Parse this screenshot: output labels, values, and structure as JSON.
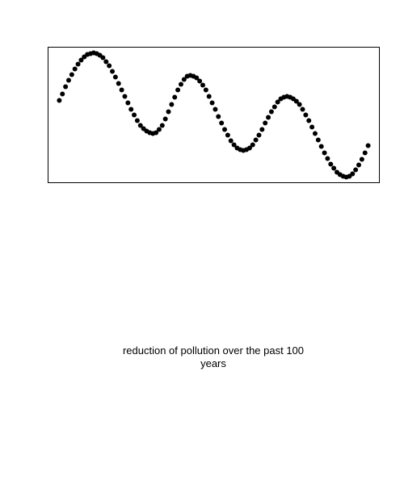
{
  "chart_data": {
    "type": "scatter",
    "title": "reduction of pollution over the past 100 years",
    "x": [
      0,
      1,
      2,
      3,
      4,
      5,
      6,
      7,
      8,
      9,
      10,
      11,
      12,
      13,
      14,
      15,
      16,
      17,
      18,
      19,
      20,
      21,
      22,
      23,
      24,
      25,
      26,
      27,
      28,
      29,
      30,
      31,
      32,
      33,
      34,
      35,
      36,
      37,
      38,
      39,
      40,
      41,
      42,
      43,
      44,
      45,
      46,
      47,
      48,
      49,
      50,
      51,
      52,
      53,
      54,
      55,
      56,
      57,
      58,
      59,
      60,
      61,
      62,
      63,
      64,
      65,
      66,
      67,
      68,
      69,
      70,
      71,
      72,
      73,
      74,
      75,
      76,
      77,
      78,
      79,
      80,
      81,
      82,
      83,
      84,
      85,
      86,
      87,
      88,
      89,
      90,
      91,
      92,
      93,
      94,
      95,
      96,
      97,
      98,
      99
    ],
    "values": [
      102,
      110,
      119,
      127,
      134,
      141,
      147,
      152,
      156,
      159,
      160,
      161,
      160,
      158,
      155,
      150,
      145,
      138,
      131,
      123,
      115,
      107,
      99,
      91,
      84,
      77,
      71,
      67,
      64,
      62,
      61,
      62,
      66,
      71,
      79,
      88,
      97,
      106,
      115,
      122,
      128,
      132,
      133,
      132,
      130,
      126,
      121,
      115,
      107,
      99,
      91,
      82,
      74,
      66,
      59,
      52,
      47,
      43,
      41,
      40,
      41,
      43,
      47,
      53,
      59,
      66,
      74,
      81,
      88,
      94,
      100,
      104,
      106,
      107,
      106,
      104,
      101,
      97,
      91,
      84,
      77,
      69,
      61,
      53,
      45,
      37,
      30,
      23,
      18,
      13,
      10,
      8,
      7,
      8,
      11,
      16,
      22,
      29,
      37,
      46
    ],
    "color": "#000000",
    "xlim": [
      -3.6,
      102.6
    ],
    "ylim": [
      0,
      168
    ]
  }
}
